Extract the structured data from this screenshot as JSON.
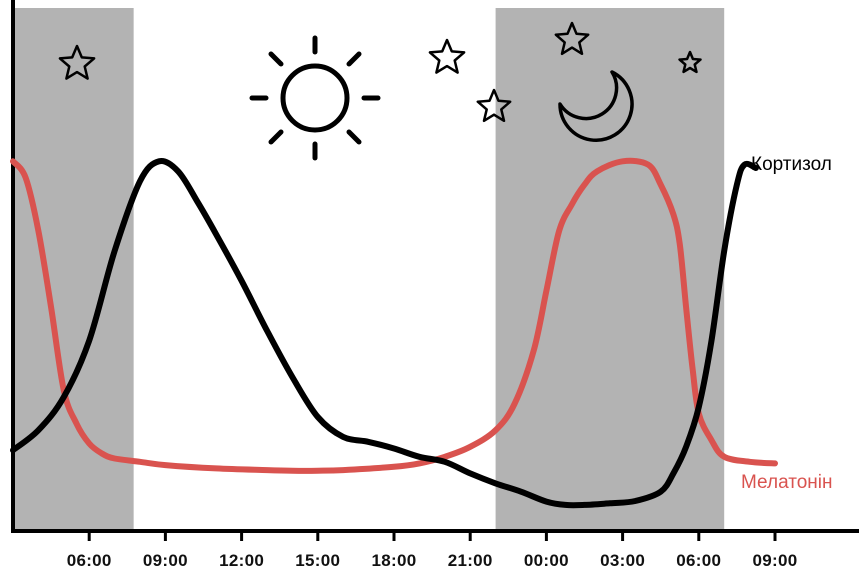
{
  "chart_data": {
    "type": "line",
    "title": "",
    "xlabel": "",
    "ylabel": "",
    "x_ticks": [
      "06:00",
      "09:00",
      "12:00",
      "15:00",
      "18:00",
      "21:00",
      "00:00",
      "03:00",
      "06:00",
      "09:00"
    ],
    "x_unit": "hours elapsed since 03:00",
    "xlim": [
      0,
      31.5
    ],
    "ylim": [
      0,
      1
    ],
    "grid": false,
    "night_bands": [
      [
        0,
        4.75
      ],
      [
        19,
        28
      ]
    ],
    "series": [
      {
        "name": "Кортизол",
        "color": "#000000",
        "x": [
          0,
          1,
          2,
          3,
          4,
          5,
          5.75,
          6.5,
          7.25,
          8,
          9,
          10,
          11,
          12,
          13,
          14,
          15,
          16,
          17,
          18,
          19,
          20,
          21,
          21.75,
          22.5,
          23.5,
          24.5,
          25.5,
          26,
          26.5,
          27,
          27.5,
          28,
          28.5,
          28.8,
          29.25
        ],
        "y": [
          0.12,
          0.18,
          0.28,
          0.45,
          0.72,
          0.93,
          0.99,
          0.96,
          0.87,
          0.77,
          0.63,
          0.48,
          0.34,
          0.22,
          0.16,
          0.145,
          0.125,
          0.1,
          0.085,
          0.05,
          0.02,
          -0.005,
          -0.035,
          -0.045,
          -0.045,
          -0.04,
          -0.033,
          -0.005,
          0.05,
          0.13,
          0.25,
          0.45,
          0.72,
          0.92,
          0.98,
          0.97
        ]
      },
      {
        "name": "Мелатонін",
        "color": "#d9534f",
        "x": [
          0,
          0.5,
          1,
          1.5,
          2,
          2.5,
          3,
          3.5,
          4,
          5,
          6,
          8,
          10,
          11,
          12,
          13,
          15,
          16,
          17,
          18,
          19,
          19.75,
          20.5,
          21,
          21.5,
          22,
          22.5,
          23,
          24,
          25,
          25.5,
          26,
          26.25,
          26.5,
          26.75,
          27,
          27.5,
          28,
          29,
          30
        ],
        "y": [
          0.99,
          0.94,
          0.78,
          0.55,
          0.3,
          0.2,
          0.14,
          0.11,
          0.095,
          0.085,
          0.075,
          0.065,
          0.06,
          0.058,
          0.058,
          0.06,
          0.07,
          0.08,
          0.1,
          0.13,
          0.18,
          0.26,
          0.42,
          0.6,
          0.78,
          0.86,
          0.92,
          0.96,
          0.99,
          0.98,
          0.92,
          0.83,
          0.74,
          0.55,
          0.37,
          0.23,
          0.15,
          0.1,
          0.085,
          0.08
        ]
      }
    ],
    "annotations": [
      "sun-icon",
      "moon-icon",
      "star-icons"
    ]
  }
}
